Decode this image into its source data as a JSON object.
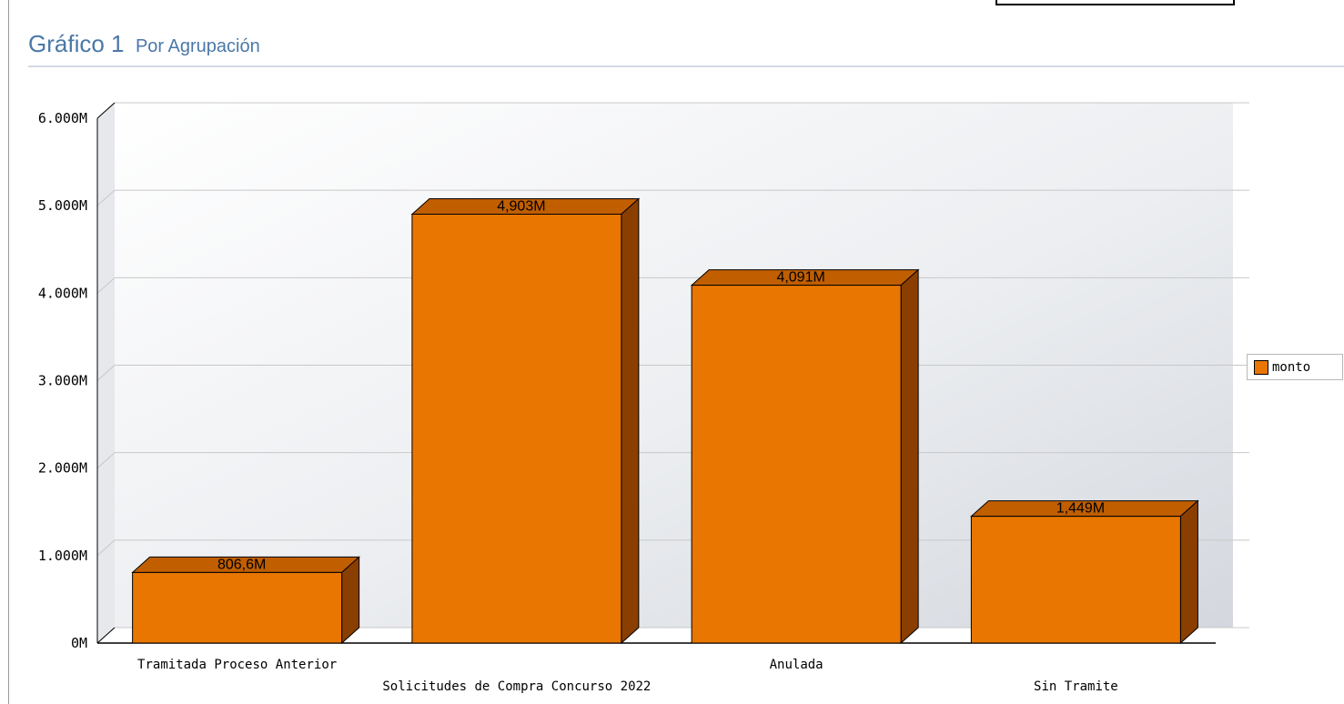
{
  "header": {
    "title": "Gráfico 1",
    "subtitle": "Por Agrupación"
  },
  "chart_data": {
    "type": "bar",
    "style": "3d",
    "categories": [
      "Tramitada Proceso Anterior",
      "Solicitudes de Compra Concurso 2022",
      "Anulada",
      "Sin Tramite"
    ],
    "series": [
      {
        "name": "monto",
        "values": [
          806.6,
          4903,
          4091,
          1449
        ],
        "color": "#e87600"
      }
    ],
    "data_labels": [
      "806,6M",
      "4,903M",
      "4,091M",
      "1,449M"
    ],
    "y_ticks": [
      "0M",
      "1.000M",
      "2.000M",
      "3.000M",
      "4.000M",
      "5.000M",
      "6.000M"
    ],
    "ylim": [
      0,
      6000
    ],
    "grid": true,
    "legend_position": "right",
    "xlabel": "",
    "ylabel": ""
  }
}
